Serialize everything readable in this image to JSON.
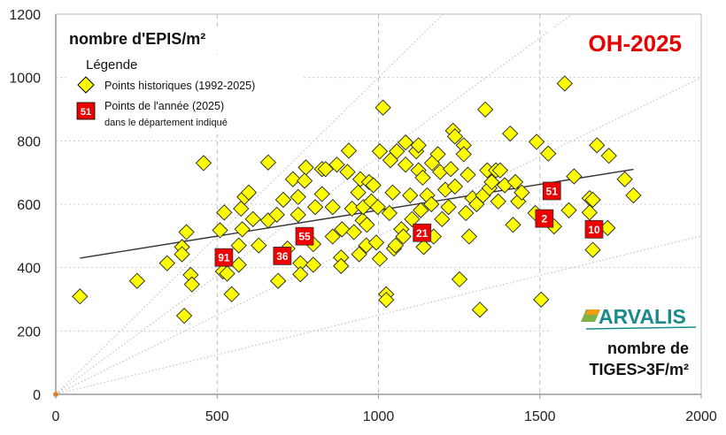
{
  "chart_data": {
    "type": "scatter",
    "title": "OH-2025",
    "ylabel": "nombre d'EPIS/m²",
    "xlabel": [
      "nombre de",
      "TIGES>3F/m²"
    ],
    "xlim": [
      0,
      2000
    ],
    "ylim": [
      0,
      1200
    ],
    "x_ticks": [
      "0",
      "500",
      "1000",
      "1500",
      "2000"
    ],
    "y_ticks": [
      "0",
      "200",
      "400",
      "600",
      "800",
      "1000",
      "1200"
    ],
    "legend": {
      "title": "Légende",
      "historic": "Points historiques (1992-2025)",
      "year_line1": "Points de l'année (2025)",
      "year_line2": "dans le département indiqué",
      "year_sample": "51"
    },
    "logo": "ARVALIS",
    "colors": {
      "historic": "#ffff00",
      "year": "#ee0000",
      "title": "#e60000",
      "logo": "#1a8a8a"
    },
    "reference_slopes": [
      1.0,
      0.75,
      0.5,
      0.25
    ],
    "trendline": [
      [
        75,
        430
      ],
      [
        1790,
        710
      ]
    ],
    "series": [
      {
        "name": "Points historiques (1992-2025)",
        "points": [
          [
            75,
            309
          ],
          [
            252,
            358
          ],
          [
            345,
            414
          ],
          [
            398,
            248
          ],
          [
            391,
            465
          ],
          [
            405,
            512
          ],
          [
            391,
            442
          ],
          [
            418,
            377
          ],
          [
            422,
            347
          ],
          [
            458,
            730
          ],
          [
            509,
            518
          ],
          [
            522,
            574
          ],
          [
            518,
            388
          ],
          [
            531,
            381
          ],
          [
            545,
            316
          ],
          [
            567,
            409
          ],
          [
            567,
            470
          ],
          [
            574,
            586
          ],
          [
            585,
            623
          ],
          [
            598,
            637
          ],
          [
            578,
            521
          ],
          [
            611,
            553
          ],
          [
            629,
            470
          ],
          [
            658,
            549
          ],
          [
            658,
            732
          ],
          [
            685,
            567
          ],
          [
            689,
            358
          ],
          [
            705,
            614
          ],
          [
            718,
            460
          ],
          [
            735,
            679
          ],
          [
            751,
            623
          ],
          [
            758,
            414
          ],
          [
            758,
            379
          ],
          [
            751,
            567
          ],
          [
            775,
            716
          ],
          [
            771,
            674
          ],
          [
            798,
            409
          ],
          [
            798,
            474
          ],
          [
            804,
            591
          ],
          [
            825,
            632
          ],
          [
            825,
            711
          ],
          [
            836,
            711
          ],
          [
            858,
            591
          ],
          [
            858,
            498
          ],
          [
            871,
            725
          ],
          [
            884,
            432
          ],
          [
            884,
            405
          ],
          [
            887,
            521
          ],
          [
            904,
            702
          ],
          [
            908,
            769
          ],
          [
            918,
            586
          ],
          [
            924,
            512
          ],
          [
            937,
            637
          ],
          [
            940,
            442
          ],
          [
            944,
            679
          ],
          [
            951,
            549
          ],
          [
            953,
            591
          ],
          [
            962,
            470
          ],
          [
            964,
            535
          ],
          [
            971,
            670
          ],
          [
            978,
            609
          ],
          [
            984,
            660
          ],
          [
            993,
            479
          ],
          [
            998,
            591
          ],
          [
            1004,
            428
          ],
          [
            1004,
            767
          ],
          [
            1014,
            905
          ],
          [
            1024,
            316
          ],
          [
            1024,
            298
          ],
          [
            1034,
            572
          ],
          [
            1037,
            739
          ],
          [
            1044,
            637
          ],
          [
            1048,
            460
          ],
          [
            1053,
            470
          ],
          [
            1057,
            767
          ],
          [
            1071,
            521
          ],
          [
            1077,
            498
          ],
          [
            1084,
            795
          ],
          [
            1084,
            725
          ],
          [
            1098,
            628
          ],
          [
            1104,
            553
          ],
          [
            1117,
            767
          ],
          [
            1124,
            786
          ],
          [
            1124,
            707
          ],
          [
            1131,
            581
          ],
          [
            1137,
            684
          ],
          [
            1140,
            465
          ],
          [
            1151,
            628
          ],
          [
            1164,
            600
          ],
          [
            1166,
            730
          ],
          [
            1171,
            498
          ],
          [
            1184,
            758
          ],
          [
            1191,
            702
          ],
          [
            1197,
            553
          ],
          [
            1207,
            646
          ],
          [
            1217,
            591
          ],
          [
            1224,
            711
          ],
          [
            1231,
            832
          ],
          [
            1237,
            814
          ],
          [
            1237,
            656
          ],
          [
            1251,
            363
          ],
          [
            1264,
            786
          ],
          [
            1264,
            758
          ],
          [
            1271,
            572
          ],
          [
            1277,
            693
          ],
          [
            1281,
            498
          ],
          [
            1291,
            619
          ],
          [
            1304,
            600
          ],
          [
            1314,
            267
          ],
          [
            1324,
            628
          ],
          [
            1331,
            899
          ],
          [
            1337,
            707
          ],
          [
            1344,
            651
          ],
          [
            1351,
            670
          ],
          [
            1364,
            707
          ],
          [
            1371,
            609
          ],
          [
            1377,
            707
          ],
          [
            1391,
            660
          ],
          [
            1408,
            823
          ],
          [
            1417,
            535
          ],
          [
            1424,
            670
          ],
          [
            1433,
            609
          ],
          [
            1444,
            637
          ],
          [
            1486,
            572
          ],
          [
            1490,
            797
          ],
          [
            1504,
            299
          ],
          [
            1526,
            760
          ],
          [
            1544,
            530
          ],
          [
            1577,
            981
          ],
          [
            1590,
            581
          ],
          [
            1606,
            688
          ],
          [
            1654,
            619
          ],
          [
            1654,
            574
          ],
          [
            1664,
            614
          ],
          [
            1664,
            456
          ],
          [
            1677,
            786
          ],
          [
            1710,
            525
          ],
          [
            1714,
            753
          ],
          [
            1763,
            679
          ],
          [
            1790,
            628
          ]
        ]
      },
      {
        "name": "Points de l'année (2025)",
        "points": [
          {
            "label": "91",
            "x": 521,
            "y": 432
          },
          {
            "label": "36",
            "x": 702,
            "y": 437
          },
          {
            "label": "55",
            "x": 771,
            "y": 499
          },
          {
            "label": "21",
            "x": 1135,
            "y": 510
          },
          {
            "label": "2",
            "x": 1514,
            "y": 555
          },
          {
            "label": "51",
            "x": 1537,
            "y": 642
          },
          {
            "label": "10",
            "x": 1668,
            "y": 521
          }
        ]
      }
    ]
  }
}
